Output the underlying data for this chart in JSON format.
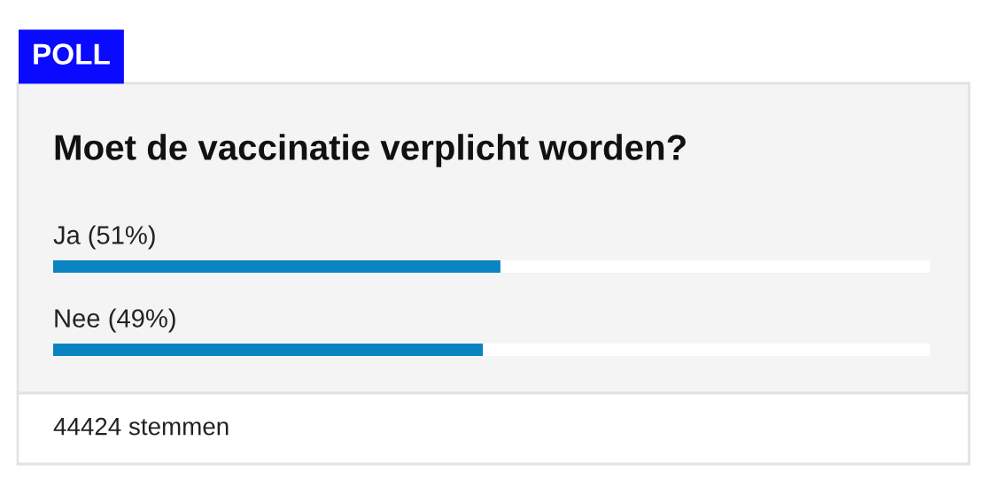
{
  "chart_data": {
    "type": "bar",
    "orientation": "horizontal",
    "title": "Moet de vaccinatie verplicht worden?",
    "categories": [
      "Ja",
      "Nee"
    ],
    "values": [
      51,
      49
    ],
    "value_labels": [
      "(51%)",
      "(49%)"
    ],
    "color": "#0a84c1",
    "annotations": [
      "POLL",
      "44424 stemmen"
    ]
  }
}
